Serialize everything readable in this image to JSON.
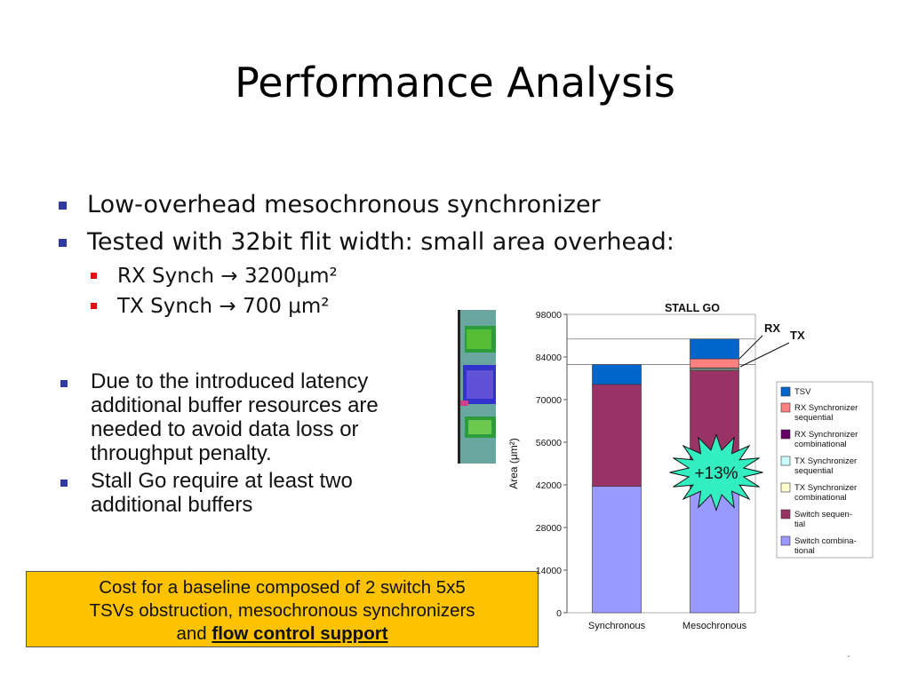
{
  "title": "Performance Analysis",
  "bullets": [
    "Low-overhead mesochronous synchronizer",
    "Tested with 32bit flit width: small area overhead:"
  ],
  "sub_bullets": [
    "RX Synch → 3200μm²",
    "TX Synch → 700 μm²"
  ],
  "bullets2": [
    "Due to the introduced latency additional buffer resources are needed to avoid data loss or throughput penalty.",
    "Stall Go require at least two additional buffers"
  ],
  "cost_box": {
    "line1": "Cost for a baseline composed of 2 switch 5x5",
    "line2": "TSVs obstruction, mesochronous  synchronizers",
    "line3_prefix": "and ",
    "line3_emph": "flow control support",
    "color": "#fdc300"
  },
  "chart_data": {
    "type": "bar",
    "stacked": true,
    "title": "STALL GO",
    "ylabel": "Area (μm²)",
    "xlabel": "",
    "ylim": [
      0,
      98000
    ],
    "yticks": [
      0,
      14000,
      28000,
      42000,
      56000,
      70000,
      84000,
      98000
    ],
    "grid": false,
    "legend_position": "right",
    "categories": [
      "Synchronous",
      "Mesochronous"
    ],
    "series": [
      {
        "name": "Switch combina-tional",
        "color": "#9999ff",
        "values": [
          41500,
          41500
        ]
      },
      {
        "name": "Switch sequen-tial",
        "color": "#993366",
        "values": [
          33500,
          38000
        ]
      },
      {
        "name": "TX Synchronizer combinational",
        "color": "#ffffcc",
        "values": [
          0,
          300
        ]
      },
      {
        "name": "TX Synchronizer sequential",
        "color": "#ccffff",
        "values": [
          0,
          400
        ]
      },
      {
        "name": "RX Synchronizer combinational",
        "color": "#660066",
        "values": [
          0,
          200
        ]
      },
      {
        "name": "RX Synchronizer sequential",
        "color": "#ff8080",
        "values": [
          0,
          3000
        ]
      },
      {
        "name": "TSV",
        "color": "#0066cc",
        "values": [
          6500,
          6500
        ]
      }
    ],
    "annotations": [
      "RX",
      "TX",
      "+13%"
    ]
  }
}
